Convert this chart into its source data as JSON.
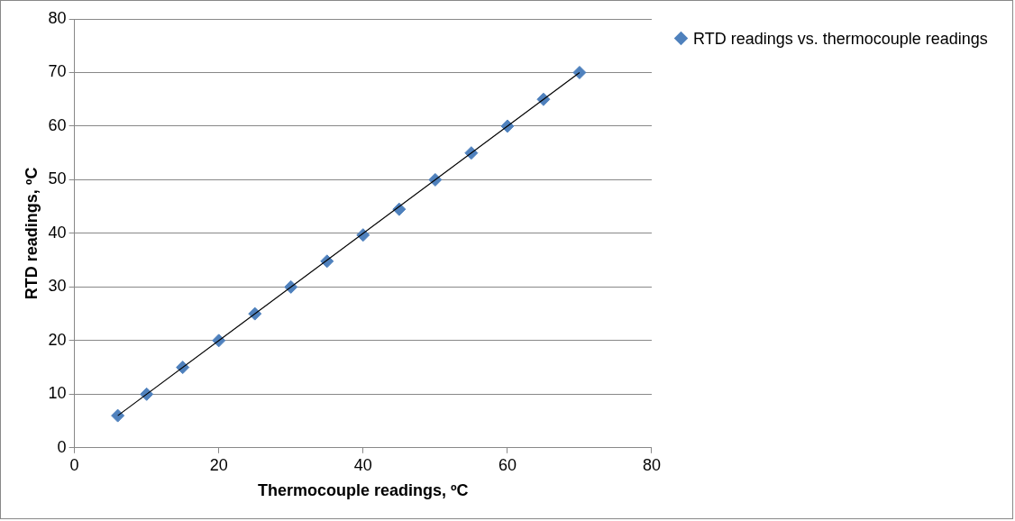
{
  "chart_data": {
    "type": "scatter",
    "xlabel": "Thermocouple readings, ºC",
    "ylabel": "RTD readings, ºC",
    "series": [
      {
        "name": "RTD readings vs. thermocouple readings",
        "color": "#4f81bd",
        "marker": "diamond",
        "x": [
          6,
          10,
          15,
          20,
          25,
          30,
          35,
          40,
          45,
          50,
          55,
          60,
          65,
          70
        ],
        "values": [
          6,
          10,
          15,
          20,
          25,
          30,
          34.8,
          39.7,
          44.5,
          50,
          55,
          60,
          65,
          70
        ]
      },
      {
        "type": "line",
        "color": "#000000",
        "marker": "none",
        "x": [
          6,
          70
        ],
        "values": [
          6,
          70
        ]
      }
    ],
    "xlim": [
      0,
      80
    ],
    "xticks": [
      0,
      20,
      40,
      60,
      80
    ],
    "ylim": [
      0,
      80
    ],
    "yticks": [
      0,
      10,
      20,
      30,
      40,
      50,
      60,
      70,
      80
    ],
    "grid": "y",
    "legend": "right"
  }
}
